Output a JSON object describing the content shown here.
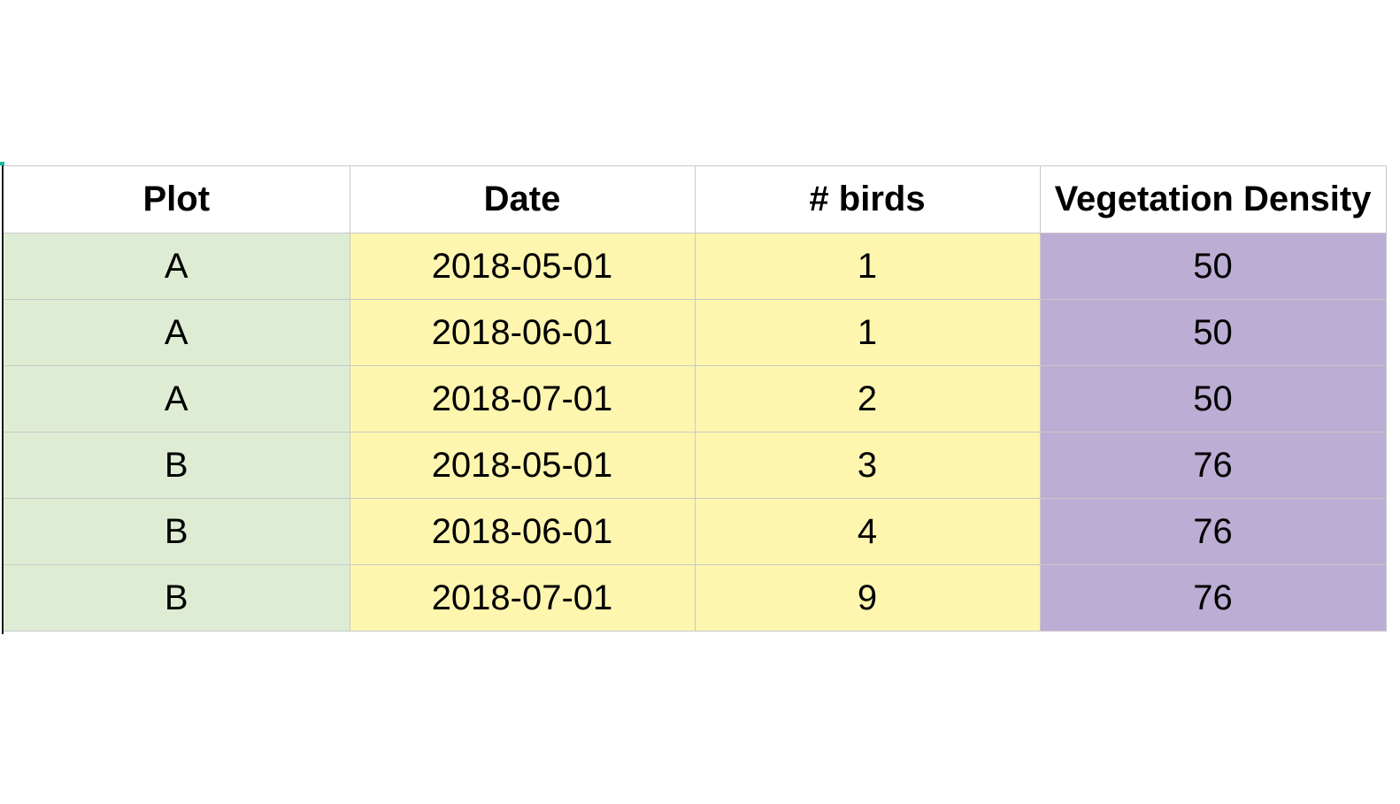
{
  "table": {
    "headers": [
      "Plot",
      "Date",
      "# birds",
      "Vegetation Density"
    ],
    "rows": [
      [
        "A",
        "2018-05-01",
        "1",
        "50"
      ],
      [
        "A",
        "2018-06-01",
        "1",
        "50"
      ],
      [
        "A",
        "2018-07-01",
        "2",
        "50"
      ],
      [
        "B",
        "2018-05-01",
        "3",
        "76"
      ],
      [
        "B",
        "2018-06-01",
        "4",
        "76"
      ],
      [
        "B",
        "2018-07-01",
        "9",
        "76"
      ]
    ]
  },
  "colors": {
    "plot_column": "#dfecd4",
    "date_column": "#fef6ae",
    "birds_column": "#fef6ae",
    "vegetation_column": "#bcadd4",
    "grid_lines": "#c8c8c8",
    "selection_marker": "#17b897"
  }
}
